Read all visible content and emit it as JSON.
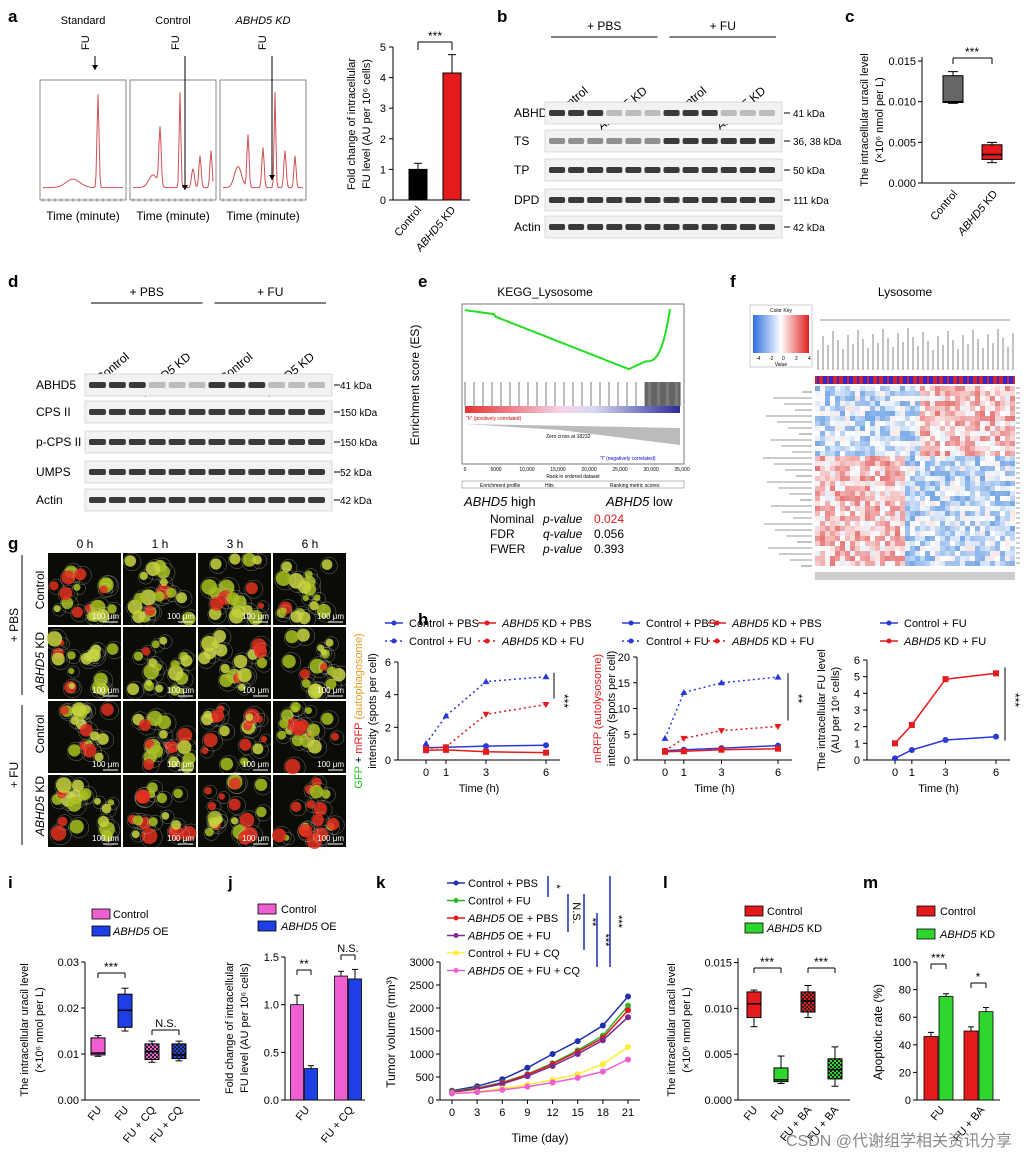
{
  "panel_letters": [
    "a",
    "b",
    "c",
    "d",
    "e",
    "f",
    "g",
    "h",
    "i",
    "j",
    "k",
    "l",
    "m"
  ],
  "panel_a": {
    "trace_titles": [
      "Standard",
      "Control",
      "ABHD5 KD"
    ],
    "fu_marker": "FU",
    "x_label": "Time (minute)",
    "bar": {
      "categories": [
        "Control",
        "ABHD5 KD"
      ],
      "values": [
        1.0,
        4.15
      ],
      "errors": [
        0.2,
        0.6
      ],
      "colors": [
        "#000000",
        "#e41a1c"
      ],
      "ylabel_line1": "Fold change of intracellular",
      "ylabel_line2": "FU level (AU per 10⁶ cells)",
      "yticks": [
        "0",
        "1",
        "2",
        "3",
        "4",
        "5"
      ],
      "ylim": [
        0,
        5
      ],
      "sig": "***"
    }
  },
  "panel_b": {
    "groups": [
      "+ PBS",
      "+ FU"
    ],
    "lanes": [
      "Control",
      "ABHD5 KD",
      "Control",
      "ABHD5 KD"
    ],
    "rows": [
      {
        "name": "ABHD5",
        "size": "41 kDa"
      },
      {
        "name": "TS",
        "size": "36, 38 kDa"
      },
      {
        "name": "TP",
        "size": "50 kDa"
      },
      {
        "name": "DPD",
        "size": "111 kDa"
      },
      {
        "name": "Actin",
        "size": "42 kDa"
      }
    ]
  },
  "panel_c": {
    "ylabel_line1": "The intracellular uracil level",
    "ylabel_line2": "(×10⁶ nmol per L)",
    "categories": [
      "Control",
      "ABHD5 KD"
    ],
    "yticks": [
      "0.000",
      "0.005",
      "0.010",
      "0.015"
    ],
    "sig": "***"
  },
  "panel_d": {
    "groups": [
      "+ PBS",
      "+ FU"
    ],
    "lanes": [
      "Control",
      "ABHD5 KD",
      "Control",
      "ABHD5 KD"
    ],
    "rows": [
      {
        "name": "ABHD5",
        "size": "41 kDa"
      },
      {
        "name": "CPS II",
        "size": "150 kDa"
      },
      {
        "name": "p-CPS II",
        "size": "150 kDa"
      },
      {
        "name": "UMPS",
        "size": "52 kDa"
      },
      {
        "name": "Actin",
        "size": "42 kDa"
      }
    ]
  },
  "panel_e": {
    "title": "KEGG_Lysosome",
    "ylabel": "Enrichment score (ES)",
    "left_label": "ABHD5 high",
    "right_label": "ABHD5 low",
    "stats": [
      {
        "name": "Nominal",
        "metric": "p-value",
        "value": "0.024",
        "color": "#e41a1c"
      },
      {
        "name": "FDR",
        "metric": "q-value",
        "value": "0.056",
        "color": "#000000"
      },
      {
        "name": "FWER",
        "metric": "p-value",
        "value": "0.393",
        "color": "#000000"
      }
    ],
    "xticks": [
      "0",
      "5000",
      "10,000",
      "15,000",
      "20,000",
      "25,000",
      "30,000",
      "35,000"
    ],
    "zero_cross": "Zero cross at 18232",
    "pos_corr": "\"h\" (positively correlated)",
    "neg_corr": "\"l\" (negatively correlated)",
    "x_axis_title": "Rank in ordered dataset",
    "legend": [
      "Enrichment profile",
      "Hits",
      "Ranking metric scores"
    ]
  },
  "panel_f": {
    "title": "Lysosome",
    "color_key": "Color Key",
    "key_ticks": [
      "-4",
      "-2",
      "0",
      "2",
      "4"
    ],
    "key_label": "Value"
  },
  "panel_g": {
    "times": [
      "0 h",
      "1 h",
      "3 h",
      "6 h"
    ],
    "outer_groups": [
      "+ PBS",
      "+ FU"
    ],
    "rows": [
      "Control",
      "ABHD5 KD",
      "Control",
      "ABHD5 KD"
    ],
    "scale_bar": "100 μm"
  },
  "panel_h": {
    "x": [
      0,
      1,
      3,
      6
    ],
    "xlabel": "Time (h)",
    "plots": [
      {
        "ylabel_parts": [
          "GFP",
          " + ",
          "mRFP",
          " (autophagosome)"
        ],
        "ylabel_line2": "intensity (spots per cell)",
        "ylim": [
          0,
          6
        ],
        "yticks": [
          "0",
          "2",
          "4",
          "6"
        ],
        "legend": [
          "Control + PBS",
          "ABHD5 KD + PBS",
          "Control + FU",
          "ABHD5 KD + FU"
        ],
        "series": [
          {
            "name": "Control + PBS",
            "values": [
              0.75,
              0.78,
              0.85,
              0.9
            ],
            "color": "#2b39d6",
            "dash": false
          },
          {
            "name": "ABHD5 KD + PBS",
            "values": [
              0.6,
              0.62,
              0.5,
              0.45
            ],
            "color": "#e41a1c",
            "dash": false
          },
          {
            "name": "Control + FU",
            "values": [
              1.0,
              2.7,
              4.8,
              5.1
            ],
            "color": "#2b39d6",
            "dash": true
          },
          {
            "name": "ABHD5 KD + FU",
            "values": [
              0.7,
              0.8,
              2.8,
              3.4
            ],
            "color": "#e41a1c",
            "dash": true
          }
        ],
        "sig": "***"
      },
      {
        "ylabel_parts": [
          "mRFP",
          " (autolysosome)"
        ],
        "ylabel_line2": "intensity (spots per cell)",
        "ylim": [
          0,
          20
        ],
        "yticks": [
          "0",
          "5",
          "10",
          "15",
          "20"
        ],
        "legend": [
          "Control + PBS",
          "ABHD5 KD + PBS",
          "Control + FU",
          "ABHD5 KD + FU"
        ],
        "series": [
          {
            "name": "Control + PBS",
            "values": [
              1.8,
              2.0,
              2.3,
              2.8
            ],
            "color": "#2b39d6",
            "dash": false
          },
          {
            "name": "ABHD5 KD + PBS",
            "values": [
              1.6,
              1.7,
              2.0,
              2.2
            ],
            "color": "#e41a1c",
            "dash": false
          },
          {
            "name": "Control + FU",
            "values": [
              4.2,
              13.1,
              15.0,
              16.1
            ],
            "color": "#2b39d6",
            "dash": true
          },
          {
            "name": "ABHD5 KD + FU",
            "values": [
              1.8,
              4.2,
              5.7,
              6.5
            ],
            "color": "#e41a1c",
            "dash": true
          }
        ],
        "sig": "**"
      },
      {
        "ylabel_line1": "The intracellular FU level",
        "ylabel_line2": "(AU per 10⁶ cells)",
        "ylim": [
          0,
          6
        ],
        "yticks": [
          "0",
          "1",
          "2",
          "3",
          "4",
          "5",
          "6"
        ],
        "legend": [
          "Control + FU",
          "ABHD5 KD + FU"
        ],
        "series": [
          {
            "name": "Control + FU",
            "values": [
              0.1,
              0.6,
              1.2,
              1.4
            ],
            "color": "#2b39d6",
            "dash": false
          },
          {
            "name": "ABHD5 KD + FU",
            "values": [
              1.0,
              2.1,
              4.85,
              5.2
            ],
            "color": "#e41a1c",
            "dash": false
          }
        ],
        "sig": "***"
      }
    ]
  },
  "panel_i": {
    "ylabel_line1": "The intracellular uracil level",
    "ylabel_line2": "(×10⁶ nmol per L)",
    "legend": [
      {
        "name": "Control",
        "color": "#ee5fd2"
      },
      {
        "name": "ABHD5 OE",
        "color": "#1f3fe6"
      }
    ],
    "categories": [
      "FU",
      "FU",
      "FU + CQ",
      "FU + CQ"
    ],
    "yticks": [
      "0.00",
      "0.01",
      "0.02",
      "0.03"
    ],
    "sig1": "***",
    "sig2": "N.S."
  },
  "panel_j": {
    "ylabel_line1": "Fold change of intracellular",
    "ylabel_line2": "FU level (AU per 10⁶ cells)",
    "legend": [
      {
        "name": "Control",
        "color": "#ee5fd2"
      },
      {
        "name": "ABHD5 OE",
        "color": "#1f3fe6"
      }
    ],
    "categories": [
      "FU",
      "FU + CQ"
    ],
    "series": [
      {
        "name": "Control",
        "values": [
          1.0,
          1.3
        ],
        "errors": [
          0.1,
          0.05
        ]
      },
      {
        "name": "ABHD5 OE",
        "values": [
          0.33,
          1.27
        ],
        "errors": [
          0.03,
          0.1
        ]
      }
    ],
    "yticks": [
      "0.0",
      "0.5",
      "1.0",
      "1.5"
    ],
    "ylim": [
      0,
      1.5
    ],
    "sig1": "**",
    "sig2": "N.S."
  },
  "panel_k": {
    "ylabel": "Tumor volume (mm³)",
    "xlabel": "Time (day)",
    "x": [
      0,
      3,
      6,
      9,
      12,
      15,
      18,
      21
    ],
    "ylim": [
      0,
      3000
    ],
    "yticks": [
      "0",
      "500",
      "1000",
      "1500",
      "2000",
      "2500",
      "3000"
    ],
    "series": [
      {
        "name": "Control + PBS",
        "values": [
          200,
          300,
          450,
          700,
          1000,
          1280,
          1620,
          2250
        ],
        "color": "#1f2fb0"
      },
      {
        "name": "Control + FU",
        "values": [
          190,
          260,
          380,
          560,
          800,
          1080,
          1400,
          2050
        ],
        "color": "#2cb52c"
      },
      {
        "name": "ABHD5 OE + PBS",
        "values": [
          180,
          250,
          370,
          550,
          780,
          1050,
          1350,
          1950
        ],
        "color": "#e41a1c"
      },
      {
        "name": "ABHD5 OE + FU",
        "values": [
          170,
          240,
          350,
          520,
          740,
          1000,
          1300,
          1800
        ],
        "color": "#7b2b8e"
      },
      {
        "name": "Control + FU + CQ",
        "values": [
          150,
          180,
          250,
          330,
          440,
          560,
          780,
          1150
        ],
        "color": "#ffee33"
      },
      {
        "name": "ABHD5 OE + FU + CQ",
        "values": [
          140,
          170,
          220,
          290,
          380,
          480,
          620,
          880
        ],
        "color": "#ee5fd2"
      }
    ],
    "sigs": [
      "*",
      "N.S.",
      "**",
      "***",
      "***"
    ]
  },
  "panel_l": {
    "ylabel_line1": "The intracellular uracil level",
    "ylabel_line2": "(×10⁶ nmol per L)",
    "legend": [
      {
        "name": "Control",
        "color": "#e41a1c"
      },
      {
        "name": "ABHD5 KD",
        "color": "#2ed62e"
      }
    ],
    "categories": [
      "FU",
      "FU",
      "FU + BA",
      "FU + BA"
    ],
    "yticks": [
      "0.000",
      "0.005",
      "0.010",
      "0.015"
    ],
    "sig1": "***",
    "sig2": "***"
  },
  "panel_m": {
    "ylabel": "Apoptotic rate (%)",
    "legend": [
      {
        "name": "Control",
        "color": "#e41a1c"
      },
      {
        "name": "ABHD5 KD",
        "color": "#2ed62e"
      }
    ],
    "categories": [
      "FU",
      "FU + BA"
    ],
    "series": [
      {
        "name": "Control",
        "values": [
          46,
          50
        ],
        "errors": [
          3,
          3
        ]
      },
      {
        "name": "ABHD5 KD",
        "values": [
          75,
          64
        ],
        "errors": [
          2,
          3
        ]
      }
    ],
    "yticks": [
      "0",
      "20",
      "40",
      "60",
      "80",
      "100"
    ],
    "ylim": [
      0,
      100
    ],
    "sig1": "***",
    "sig2": "*"
  },
  "watermark": "CSDN @代谢组学相关资讯分享",
  "chart_data": [
    {
      "type": "bar",
      "panel": "a",
      "categories": [
        "Control",
        "ABHD5 KD"
      ],
      "values": [
        1.0,
        4.15
      ],
      "ylim": [
        0,
        5
      ],
      "ylabel": "Fold change of intracellular FU level (AU per 10⁶ cells)"
    },
    {
      "type": "line",
      "panel": "h1",
      "x": [
        0,
        1,
        3,
        6
      ],
      "series": [
        {
          "name": "Control + PBS",
          "values": [
            0.75,
            0.78,
            0.85,
            0.9
          ]
        },
        {
          "name": "ABHD5 KD + PBS",
          "values": [
            0.6,
            0.62,
            0.5,
            0.45
          ]
        },
        {
          "name": "Control + FU",
          "values": [
            1.0,
            2.7,
            4.8,
            5.1
          ]
        },
        {
          "name": "ABHD5 KD + FU",
          "values": [
            0.7,
            0.8,
            2.8,
            3.4
          ]
        }
      ],
      "xlabel": "Time (h)",
      "ylim": [
        0,
        6
      ]
    },
    {
      "type": "line",
      "panel": "h2",
      "x": [
        0,
        1,
        3,
        6
      ],
      "series": [
        {
          "name": "Control + PBS",
          "values": [
            1.8,
            2.0,
            2.3,
            2.8
          ]
        },
        {
          "name": "ABHD5 KD + PBS",
          "values": [
            1.6,
            1.7,
            2.0,
            2.2
          ]
        },
        {
          "name": "Control + FU",
          "values": [
            4.2,
            13.1,
            15.0,
            16.1
          ]
        },
        {
          "name": "ABHD5 KD + FU",
          "values": [
            1.8,
            4.2,
            5.7,
            6.5
          ]
        }
      ],
      "xlabel": "Time (h)",
      "ylim": [
        0,
        20
      ]
    },
    {
      "type": "line",
      "panel": "h3",
      "x": [
        0,
        1,
        3,
        6
      ],
      "series": [
        {
          "name": "Control + FU",
          "values": [
            0.1,
            0.6,
            1.2,
            1.4
          ]
        },
        {
          "name": "ABHD5 KD + FU",
          "values": [
            1.0,
            2.1,
            4.85,
            5.2
          ]
        }
      ],
      "xlabel": "Time (h)",
      "ylim": [
        0,
        6
      ]
    },
    {
      "type": "bar",
      "panel": "j",
      "categories": [
        "FU",
        "FU + CQ"
      ],
      "series": [
        {
          "name": "Control",
          "values": [
            1.0,
            1.3
          ]
        },
        {
          "name": "ABHD5 OE",
          "values": [
            0.33,
            1.27
          ]
        }
      ],
      "ylim": [
        0,
        1.5
      ]
    },
    {
      "type": "line",
      "panel": "k",
      "x": [
        0,
        3,
        6,
        9,
        12,
        15,
        18,
        21
      ],
      "series": [
        {
          "name": "Control + PBS",
          "values": [
            200,
            300,
            450,
            700,
            1000,
            1280,
            1620,
            2250
          ]
        },
        {
          "name": "Control + FU",
          "values": [
            190,
            260,
            380,
            560,
            800,
            1080,
            1400,
            2050
          ]
        },
        {
          "name": "ABHD5 OE + PBS",
          "values": [
            180,
            250,
            370,
            550,
            780,
            1050,
            1350,
            1950
          ]
        },
        {
          "name": "ABHD5 OE + FU",
          "values": [
            170,
            240,
            350,
            520,
            740,
            1000,
            1300,
            1800
          ]
        },
        {
          "name": "Control + FU + CQ",
          "values": [
            150,
            180,
            250,
            330,
            440,
            560,
            780,
            1150
          ]
        },
        {
          "name": "ABHD5 OE + FU + CQ",
          "values": [
            140,
            170,
            220,
            290,
            380,
            480,
            620,
            880
          ]
        }
      ],
      "xlabel": "Time (day)",
      "ylabel": "Tumor volume (mm³)",
      "ylim": [
        0,
        3000
      ]
    },
    {
      "type": "bar",
      "panel": "m",
      "categories": [
        "FU",
        "FU + BA"
      ],
      "series": [
        {
          "name": "Control",
          "values": [
            46,
            50
          ]
        },
        {
          "name": "ABHD5 KD",
          "values": [
            75,
            64
          ]
        }
      ],
      "ylabel": "Apoptotic rate (%)",
      "ylim": [
        0,
        100
      ]
    }
  ]
}
